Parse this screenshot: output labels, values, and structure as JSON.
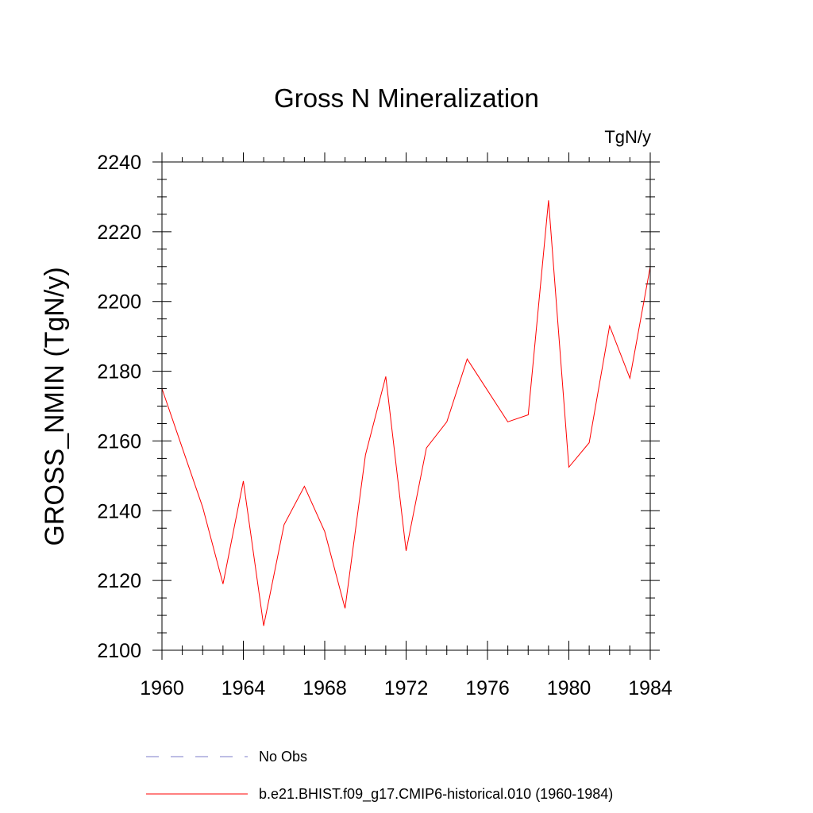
{
  "chart_data": {
    "type": "line",
    "title": "Gross N Mineralization",
    "units_label": "TgN/y",
    "xlabel": "",
    "ylabel": "GROSS_NMIN  (TgN/y)",
    "xlim": [
      1960,
      1984
    ],
    "ylim": [
      2100,
      2240
    ],
    "x_ticks": [
      1960,
      1964,
      1968,
      1972,
      1976,
      1980,
      1984
    ],
    "y_ticks": [
      2100,
      2120,
      2140,
      2160,
      2180,
      2200,
      2220,
      2240
    ],
    "grid": false,
    "legend_position": "bottom",
    "x": [
      1960,
      1961,
      1962,
      1963,
      1964,
      1965,
      1966,
      1967,
      1968,
      1969,
      1970,
      1971,
      1972,
      1973,
      1974,
      1975,
      1976,
      1977,
      1978,
      1979,
      1980,
      1981,
      1982,
      1983,
      1984
    ],
    "series": [
      {
        "name": "b.e21.BHIST.f09_g17.CMIP6-historical.010 (1960-1984)",
        "color": "#ff0000",
        "dash": "solid",
        "values": [
          2175,
          2158,
          2141,
          2119,
          2148.5,
          2107,
          2136,
          2147,
          2134,
          2112,
          2156,
          2178.5,
          2128.5,
          2158,
          2165.5,
          2183.5,
          2174.5,
          2165.5,
          2167.5,
          2229,
          2152.5,
          2159.5,
          2193,
          2178,
          2210
        ]
      }
    ],
    "legend": [
      {
        "label": "No Obs",
        "color": "#7b7bc8",
        "dash": "dashed"
      },
      {
        "label": "b.e21.BHIST.f09_g17.CMIP6-historical.010 (1960-1984)",
        "color": "#ff0000",
        "dash": "solid"
      }
    ]
  }
}
